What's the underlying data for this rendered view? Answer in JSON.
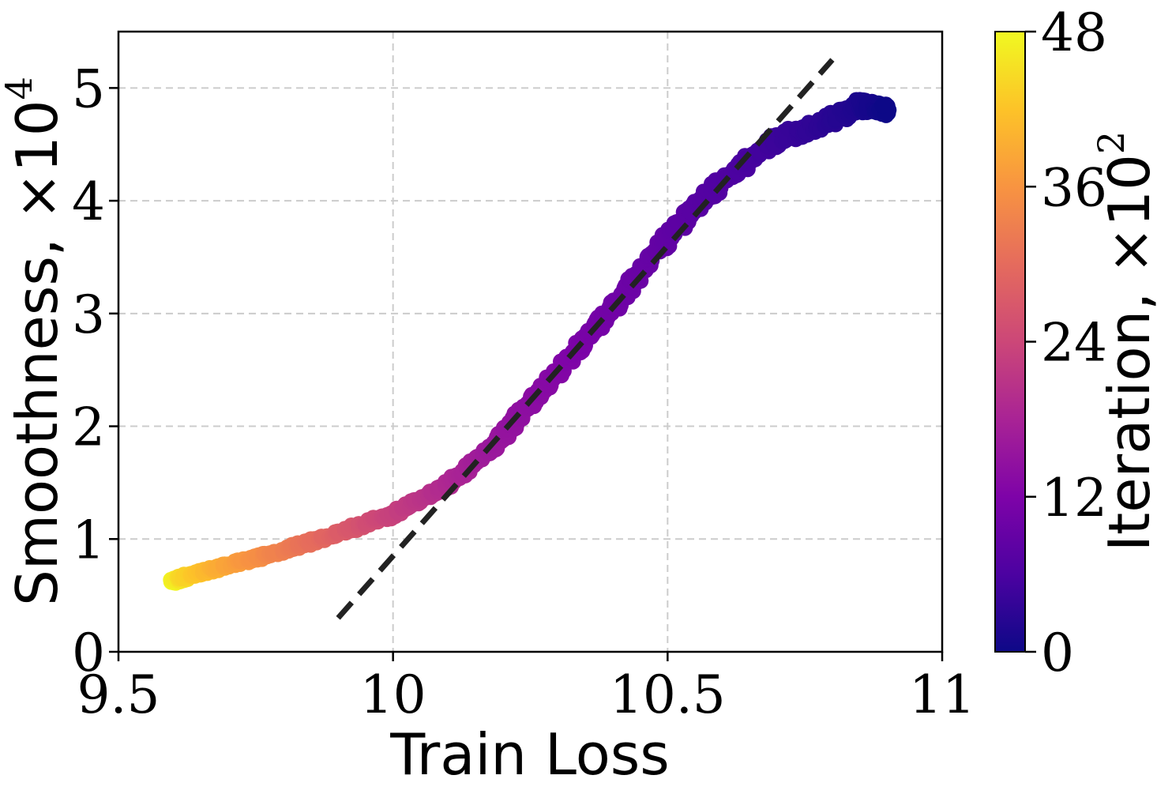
{
  "chart_data": {
    "type": "scatter",
    "xlabel": "Train Loss",
    "ylabel": "Smoothness, ×10",
    "ylabel_exponent": "4",
    "xlim": [
      9.5,
      11.0
    ],
    "ylim": [
      0,
      5.5
    ],
    "xticks": [
      9.5,
      10.0,
      10.5,
      11.0
    ],
    "xtick_labels": [
      "9.5",
      "10",
      "10.5",
      "11"
    ],
    "yticks": [
      0,
      1,
      2,
      3,
      4,
      5
    ],
    "ytick_labels": [
      "0",
      "1",
      "2",
      "3",
      "4",
      "5"
    ],
    "grid": true,
    "colorbar": {
      "label": "Iteration, ×10",
      "label_exponent": "2",
      "range": [
        0,
        48
      ],
      "ticks": [
        0,
        12,
        24,
        36,
        48
      ],
      "tick_labels": [
        "0",
        "12",
        "24",
        "36",
        "48"
      ],
      "colormap": "plasma"
    },
    "series": [
      {
        "marker_color": "colored by iteration (plasma)",
        "points": [
          {
            "x": 10.9,
            "y": 4.8,
            "iteration": 0
          },
          {
            "x": 10.85,
            "y": 4.85,
            "iteration": 1.5
          },
          {
            "x": 10.78,
            "y": 4.68,
            "iteration": 3
          },
          {
            "x": 10.7,
            "y": 4.55,
            "iteration": 4.5
          },
          {
            "x": 10.63,
            "y": 4.3,
            "iteration": 6
          },
          {
            "x": 10.55,
            "y": 3.95,
            "iteration": 7.5
          },
          {
            "x": 10.48,
            "y": 3.55,
            "iteration": 9
          },
          {
            "x": 10.4,
            "y": 3.05,
            "iteration": 10.5
          },
          {
            "x": 10.33,
            "y": 2.65,
            "iteration": 12
          },
          {
            "x": 10.25,
            "y": 2.2,
            "iteration": 14
          },
          {
            "x": 10.18,
            "y": 1.8,
            "iteration": 16
          },
          {
            "x": 10.1,
            "y": 1.48,
            "iteration": 19
          },
          {
            "x": 10.0,
            "y": 1.22,
            "iteration": 23
          },
          {
            "x": 9.9,
            "y": 1.05,
            "iteration": 28
          },
          {
            "x": 9.8,
            "y": 0.9,
            "iteration": 33
          },
          {
            "x": 9.7,
            "y": 0.77,
            "iteration": 38
          },
          {
            "x": 9.62,
            "y": 0.66,
            "iteration": 44
          },
          {
            "x": 9.6,
            "y": 0.62,
            "iteration": 48
          }
        ]
      }
    ],
    "fit_line": {
      "style": "dashed",
      "color": "#222222",
      "points": [
        {
          "x": 9.9,
          "y": 0.3
        },
        {
          "x": 10.8,
          "y": 5.25
        }
      ]
    }
  }
}
